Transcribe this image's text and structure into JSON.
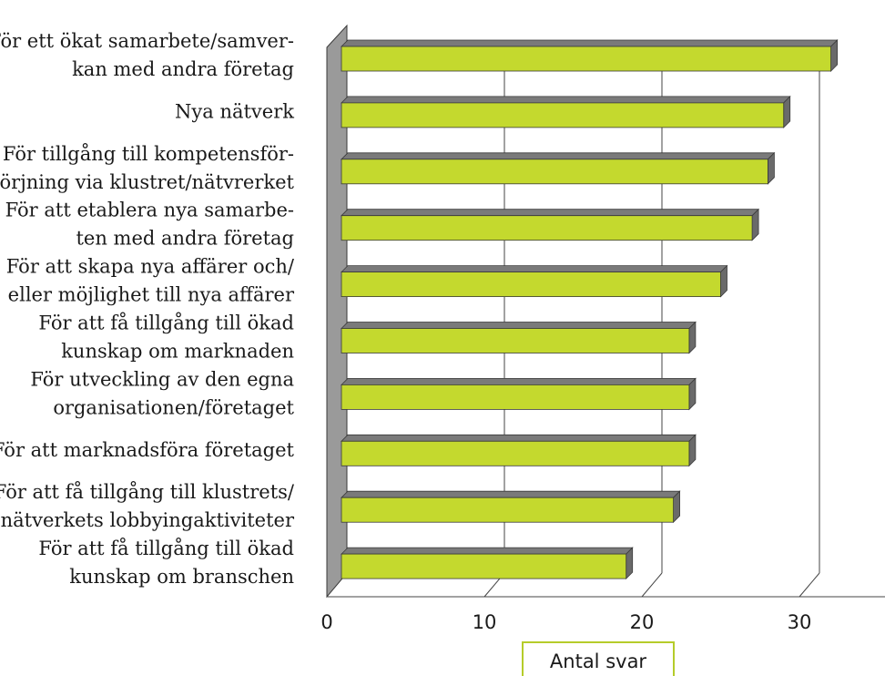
{
  "chart_data": {
    "type": "bar",
    "orientation": "horizontal",
    "style": "3d",
    "categories": [
      [
        "För ett ökat samarbete/samver-",
        "kan med andra företag"
      ],
      [
        "Nya nätverk"
      ],
      [
        "För tillgång till kompetensför-",
        "sörjning via klustret/nätvrerket"
      ],
      [
        "För att  etablera nya samarbe-",
        "ten med andra företag"
      ],
      [
        "För att skapa nya affärer och/",
        "eller möjlighet till nya affärer"
      ],
      [
        "För att få tillgång till ökad",
        "kunskap om marknaden"
      ],
      [
        "För utveckling av den egna",
        "organisationen/företaget"
      ],
      [
        "För att marknadsföra företaget"
      ],
      [
        "För att få tillgång till klustrets/",
        "nätverkets lobbyingaktiviteter"
      ],
      [
        "För att få tillgång till ökad",
        "kunskap om branschen"
      ]
    ],
    "values": [
      32,
      29,
      28,
      27,
      25,
      23,
      23,
      23,
      22,
      19
    ],
    "xlim": [
      0,
      35
    ],
    "xticks": [
      "0",
      "10",
      "20",
      "30"
    ],
    "xlabel": "Antal svar",
    "grid": "vertical",
    "colors": {
      "bar_front": "#c4d92e",
      "bar_top": "#7a7a7a",
      "bar_side": "#6a6a6a",
      "bar_edge": "#3a3a3a",
      "wall": "#9a9a9a",
      "grid": "#444444",
      "xlabel_border": "#b5cc2a"
    }
  }
}
